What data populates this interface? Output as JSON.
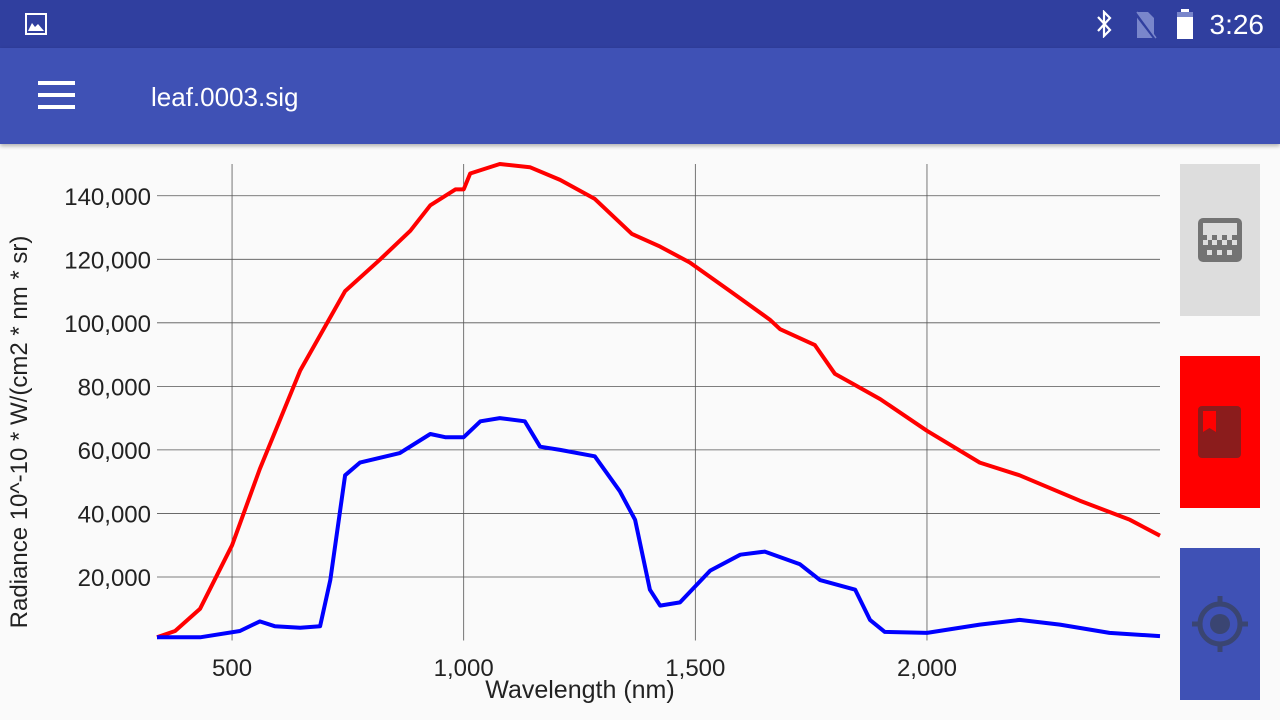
{
  "status_bar": {
    "time": "3:26",
    "icons": [
      "gallery-icon",
      "bluetooth-icon",
      "no-sim-icon",
      "battery-icon"
    ]
  },
  "app_bar": {
    "title": "leaf.0003.sig",
    "menu_icon": "hamburger-menu-icon"
  },
  "side_buttons": [
    {
      "name": "calibrate-button",
      "icon": "checkerboard-icon",
      "color": "#dddddd"
    },
    {
      "name": "save-reference-button",
      "icon": "bookmark-book-icon",
      "color": "#ff0000"
    },
    {
      "name": "target-button",
      "icon": "crosshair-icon",
      "color": "#3f51b5"
    }
  ],
  "chart_data": {
    "type": "line",
    "title": "",
    "xlabel": "Wavelength (nm)",
    "ylabel": "Radiance 10^-10 * W/(cm2 * nm * sr)",
    "xlim": [
      338,
      2503
    ],
    "ylim": [
      0,
      150000
    ],
    "grid": true,
    "xticks": [
      500,
      1000,
      1500,
      2000
    ],
    "xtick_labels": [
      "500",
      "1,000",
      "1,500",
      "2,000"
    ],
    "yticks": [
      20000,
      40000,
      60000,
      80000,
      100000,
      120000,
      140000
    ],
    "ytick_labels": [
      "20,000",
      "40,000",
      "60,000",
      "80,000",
      "100,000",
      "120,000",
      "140,000"
    ],
    "series": [
      {
        "name": "reference",
        "color": "#ff0000",
        "x": [
          338,
          377,
          431,
          500,
          560,
          647,
          744,
          820,
          885,
          928,
          982,
          1000,
          1014,
          1078,
          1143,
          1208,
          1283,
          1363,
          1424,
          1488,
          1575,
          1661,
          1683,
          1758,
          1801,
          1899,
          2000,
          2114,
          2200,
          2330,
          2438,
          2503
        ],
        "y": [
          1000,
          3000,
          10000,
          30000,
          54000,
          85000,
          110000,
          120000,
          129000,
          137000,
          142000,
          142000,
          147000,
          150000,
          149000,
          145000,
          139000,
          128000,
          124000,
          119000,
          110000,
          101000,
          98000,
          93000,
          84000,
          76000,
          66000,
          56000,
          52000,
          44000,
          38000,
          33000
        ]
      },
      {
        "name": "target",
        "color": "#0000ff",
        "x": [
          338,
          431,
          517,
          560,
          592,
          647,
          690,
          712,
          744,
          776,
          862,
          928,
          960,
          1000,
          1036,
          1078,
          1132,
          1165,
          1208,
          1283,
          1337,
          1370,
          1402,
          1424,
          1467,
          1532,
          1597,
          1650,
          1726,
          1769,
          1845,
          1877,
          1909,
          2000,
          2114,
          2200,
          2287,
          2394,
          2503
        ],
        "y": [
          1000,
          1000,
          3000,
          6000,
          4500,
          4000,
          4500,
          19000,
          52000,
          56000,
          59000,
          65000,
          64000,
          64000,
          69000,
          70000,
          69000,
          61000,
          60000,
          58000,
          47000,
          38000,
          16000,
          11000,
          12000,
          22000,
          27000,
          28000,
          24000,
          19000,
          16000,
          6500,
          2700,
          2400,
          5000,
          6500,
          5000,
          2400,
          1400
        ]
      }
    ]
  }
}
